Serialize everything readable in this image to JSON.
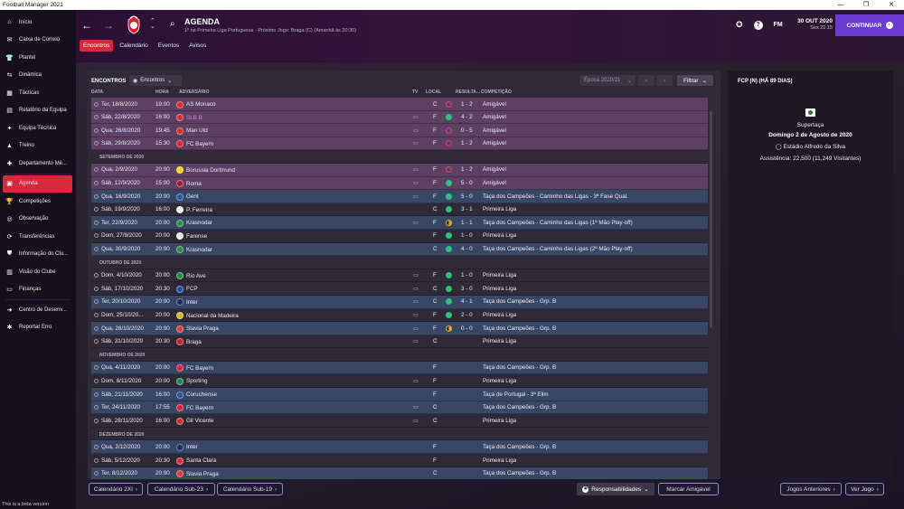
{
  "window": {
    "title": "Football Manager 2021",
    "buttons": [
      "—",
      "❐",
      "✕"
    ]
  },
  "sidebar": {
    "items": [
      {
        "label": "Início",
        "icon": "home-icon",
        "glyph": "⌂"
      },
      {
        "label": "Caixa de Correio",
        "icon": "mail-icon",
        "glyph": "✉"
      },
      {
        "label": "Plantel",
        "icon": "shirt-icon",
        "glyph": "👕"
      },
      {
        "label": "Dinâmica",
        "icon": "dynamics-icon",
        "glyph": "⇆"
      },
      {
        "label": "Tácticas",
        "icon": "tactics-icon",
        "glyph": "▦"
      },
      {
        "label": "Relatório da Equipa",
        "icon": "report-icon",
        "glyph": "▤"
      },
      {
        "label": "Equipa Técnica",
        "icon": "staff-icon",
        "glyph": "✦"
      },
      {
        "label": "Treino",
        "icon": "training-icon",
        "glyph": "▲"
      },
      {
        "label": "Departamento Mé...",
        "icon": "medical-icon",
        "glyph": "✚"
      },
      {
        "label": "Agenda",
        "icon": "calendar-icon",
        "glyph": "▣",
        "active": true
      },
      {
        "label": "Competições",
        "icon": "trophy-icon",
        "glyph": "🏆"
      },
      {
        "label": "Observação",
        "icon": "scouting-icon",
        "glyph": "◎"
      },
      {
        "label": "Transferências",
        "icon": "transfers-icon",
        "glyph": "⟳"
      },
      {
        "label": "Informação do Clu...",
        "icon": "club-info-icon",
        "glyph": "⛊"
      },
      {
        "label": "Visão do Clube",
        "icon": "club-vision-icon",
        "glyph": "▥"
      },
      {
        "label": "Finanças",
        "icon": "finances-icon",
        "glyph": "▭"
      },
      {
        "label": "Centro de Desenv...",
        "icon": "dev-centre-icon",
        "glyph": "➜"
      },
      {
        "label": "Reportar Erro",
        "icon": "bug-icon",
        "glyph": "✱"
      }
    ],
    "beta_text": "This is a beta version"
  },
  "header": {
    "title": "AGENDA",
    "subtitle": "1º na Primeira Liga Portuguesa - Próximo Jogo: Braga (C) (Amanhã às 20:30)",
    "tabs": [
      "Encontros",
      "Calendário",
      "Eventos",
      "Avisos"
    ],
    "fm_label": "FM",
    "date": "30 OUT 2020",
    "time": "Sex 21:15",
    "continue_label": "CONTINUAR",
    "help_glyph": "?"
  },
  "fixtures_panel": {
    "title": "ENCONTROS",
    "view_dropdown": "Encontros",
    "season_dropdown": "Época 2020/21",
    "filter_label": "Filtrar",
    "columns": {
      "date": "DATA",
      "time": "HORA",
      "opponent": "ADVERSÁRIO",
      "tv": "TV",
      "venue": "LOCAL",
      "result": "RESULTA...",
      "competition": "COMPETIÇÃO"
    },
    "rows": [
      {
        "type": "friendly",
        "date": "Ter, 18/8/2020",
        "time": "19:00",
        "opp": "AS Monaco",
        "badge": "#d62b2b",
        "tv": "",
        "loc": "C",
        "res": "l",
        "score": "1 - 2",
        "comp": "Amigável"
      },
      {
        "type": "friendly",
        "date": "Sáb, 22/8/2020",
        "time": "16:00",
        "opp": "SLB B",
        "badge": "#d62b2b",
        "hl": true,
        "tv": "▭",
        "loc": "F",
        "res": "w",
        "score": "4 - 2",
        "comp": "Amigável"
      },
      {
        "type": "friendly",
        "date": "Qua, 26/8/2020",
        "time": "19:45",
        "opp": "Man Utd",
        "badge": "#d32c23",
        "tv": "▭",
        "loc": "F",
        "res": "l",
        "score": "0 - 5",
        "comp": "Amigável"
      },
      {
        "type": "friendly",
        "date": "Sáb, 29/8/2020",
        "time": "15:30",
        "opp": "FC Bayern",
        "badge": "#d6213a",
        "tv": "▭",
        "loc": "F",
        "res": "l",
        "score": "1 - 2",
        "comp": "Amigável"
      },
      {
        "type": "section",
        "label": "SETEMBRO DE 2020"
      },
      {
        "type": "friendly",
        "date": "Qua, 2/9/2020",
        "time": "20:00",
        "opp": "Borussia Dortmund",
        "badge": "#f5d30f",
        "tv": "▭",
        "loc": "F",
        "res": "l",
        "score": "1 - 2",
        "comp": "Amigável"
      },
      {
        "type": "friendly",
        "date": "Sáb, 12/9/2020",
        "time": "15:00",
        "opp": "Roma",
        "badge": "#9c1f2e",
        "tv": "▭",
        "loc": "F",
        "res": "w",
        "score": "5 - 0",
        "comp": "Amigável"
      },
      {
        "type": "cup",
        "date": "Qua, 16/9/2020",
        "time": "20:00",
        "opp": "Gent",
        "badge": "#2952a3",
        "tv": "▭",
        "loc": "F",
        "res": "w",
        "score": "5 - 0",
        "comp": "Taça dos Campeões - Caminho das Ligas - 3ª Fase Qual."
      },
      {
        "type": "plain",
        "date": "Sáb, 19/9/2020",
        "time": "16:00",
        "opp": "P. Ferreira",
        "badge": "#f2f2f2",
        "tv": "",
        "loc": "C",
        "res": "w",
        "score": "3 - 1",
        "comp": "Primeira Liga"
      },
      {
        "type": "cup",
        "date": "Ter, 22/9/2020",
        "time": "20:00",
        "opp": "Krasnodar",
        "badge": "#2b8a43",
        "tv": "▭",
        "loc": "F",
        "res": "d",
        "score": "1 - 1",
        "comp": "Taça dos Campeões - Caminho das Ligas (1ª Mão Play-off)"
      },
      {
        "type": "plain",
        "date": "Dom, 27/9/2020",
        "time": "20:00",
        "opp": "Farense",
        "badge": "#e8e8e8",
        "tv": "",
        "loc": "F",
        "res": "w",
        "score": "1 - 0",
        "comp": "Primeira Liga"
      },
      {
        "type": "cup",
        "date": "Qua, 30/9/2020",
        "time": "20:00",
        "opp": "Krasnodar",
        "badge": "#2b8a43",
        "tv": "",
        "loc": "C",
        "res": "w",
        "score": "4 - 0",
        "comp": "Taça dos Campeões - Caminho das Ligas (2ª Mão Play-off)"
      },
      {
        "type": "section",
        "label": "OUTUBRO DE 2020"
      },
      {
        "type": "plain",
        "date": "Dom, 4/10/2020",
        "time": "20:00",
        "opp": "Rio Ave",
        "badge": "#2f8a46",
        "tv": "▭",
        "loc": "F",
        "res": "w",
        "score": "1 - 0",
        "comp": "Primeira Liga"
      },
      {
        "type": "plain",
        "date": "Sáb, 17/10/2020",
        "time": "20:30",
        "opp": "FCP",
        "badge": "#1f4fa8",
        "tv": "▭",
        "loc": "C",
        "res": "w",
        "score": "3 - 0",
        "comp": "Primeira Liga"
      },
      {
        "type": "cup",
        "date": "Ter, 20/10/2020",
        "time": "20:00",
        "opp": "Inter",
        "badge": "#1b2a6b",
        "tv": "▭",
        "loc": "C",
        "res": "w",
        "score": "4 - 1",
        "comp": "Taça dos Campeões - Grp. B"
      },
      {
        "type": "plain",
        "date": "Dom, 25/10/20...",
        "time": "20:00",
        "opp": "Nacional da Madeira",
        "badge": "#e0b124",
        "tv": "▭",
        "loc": "F",
        "res": "w",
        "score": "2 - 0",
        "comp": "Primeira Liga"
      },
      {
        "type": "cup",
        "date": "Qua, 28/10/2020",
        "time": "20:00",
        "opp": "Slavia Praga",
        "badge": "#e03a3a",
        "tv": "▭",
        "loc": "F",
        "res": "d",
        "score": "0 - 0",
        "comp": "Taça dos Campeões - Grp. B"
      },
      {
        "type": "plain",
        "date": "Sáb, 31/10/2020",
        "time": "20:30",
        "opp": "Braga",
        "badge": "#c8202b",
        "tv": "▭",
        "loc": "C",
        "res": "",
        "score": "",
        "comp": "Primeira Liga"
      },
      {
        "type": "section",
        "label": "NOVEMBRO DE 2020"
      },
      {
        "type": "cup",
        "date": "Qua, 4/11/2020",
        "time": "20:00",
        "opp": "FC Bayern",
        "badge": "#d6213a",
        "tv": "",
        "loc": "F",
        "res": "",
        "score": "",
        "comp": "Taça dos Campeões - Grp. B"
      },
      {
        "type": "plain",
        "date": "Dom, 8/11/2020",
        "time": "20:00",
        "opp": "Sporting",
        "badge": "#1d8a4a",
        "tv": "▭",
        "loc": "F",
        "res": "",
        "score": "",
        "comp": "Primeira Liga"
      },
      {
        "type": "cup",
        "date": "Sáb, 21/11/2020",
        "time": "16:00",
        "opp": "Coruchense",
        "badge": "#2a4f9e",
        "tv": "",
        "loc": "F",
        "res": "",
        "score": "",
        "comp": "Taça de Portugal - 3ª Elim"
      },
      {
        "type": "cup",
        "date": "Ter, 24/11/2020",
        "time": "17:55",
        "opp": "FC Bayern",
        "badge": "#d6213a",
        "tv": "▭",
        "loc": "C",
        "res": "",
        "score": "",
        "comp": "Taça dos Campeões - Grp. B"
      },
      {
        "type": "plain",
        "date": "Sáb, 28/11/2020",
        "time": "16:00",
        "opp": "Gil Vicente",
        "badge": "#d43030",
        "tv": "▭",
        "loc": "C",
        "res": "",
        "score": "",
        "comp": "Primeira Liga"
      },
      {
        "type": "section",
        "label": "DEZEMBRO DE 2020"
      },
      {
        "type": "cup",
        "date": "Qua, 2/12/2020",
        "time": "20:00",
        "opp": "Inter",
        "badge": "#1b2a6b",
        "tv": "",
        "loc": "F",
        "res": "",
        "score": "",
        "comp": "Taça dos Campeões - Grp. B"
      },
      {
        "type": "plain",
        "date": "Sáb, 5/12/2020",
        "time": "20:30",
        "opp": "Santa Clara",
        "badge": "#d72f3a",
        "tv": "",
        "loc": "F",
        "res": "",
        "score": "",
        "comp": "Primeira Liga"
      },
      {
        "type": "cup",
        "date": "Ter, 8/12/2020",
        "time": "20:00",
        "opp": "Slavia Praga",
        "badge": "#e03a3a",
        "tv": "",
        "loc": "C",
        "res": "",
        "score": "",
        "comp": "Taça dos Campeões - Grp. B"
      }
    ]
  },
  "match_panel": {
    "title": "FCP (N) (HÁ 89 DIAS)",
    "competition": "Supertaça",
    "date": "Domingo 2 de Agosto de 2020",
    "stadium": "Estádio Alfredo da Silva",
    "attendance": "Assistência: 22,500 (11,249 Visitantes)"
  },
  "footer": {
    "left_buttons": [
      "Calendário 2XI",
      "Calendário Sub-23",
      "Calendário Sub-19"
    ],
    "responsibilities": "Responsabilidades",
    "friendly": "Marcar Amigável",
    "prev_games": "Jogos Anteriores",
    "see_game": "Ver Jogo"
  },
  "colors": {
    "accent": "#d42a3b",
    "continue": "#6c3bd1",
    "win": "#2bc277",
    "loss": "#e0434f",
    "draw": "#f0a22f"
  }
}
